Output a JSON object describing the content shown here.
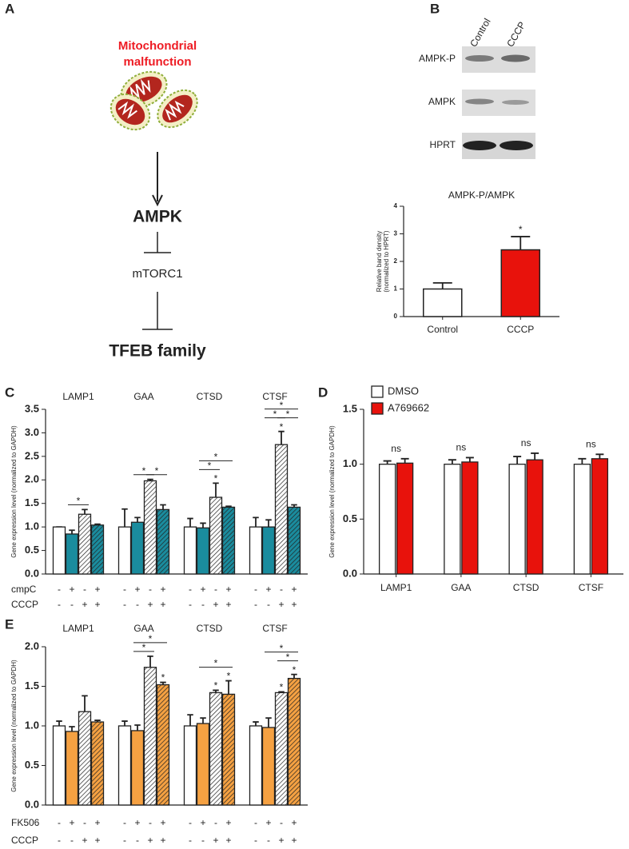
{
  "panel_labels": [
    "A",
    "B",
    "C",
    "D",
    "E"
  ],
  "diagram": {
    "title": [
      "Mitochondrial",
      "malfunction"
    ],
    "nodes": [
      "AMPK",
      "mTORC1",
      "TFEB family"
    ]
  },
  "blot": {
    "lanes": [
      "Control",
      "CCCP"
    ],
    "rows": [
      "AMPK-P",
      "AMPK",
      "HPRT"
    ]
  },
  "chart_data": [
    {
      "type": "bar",
      "title": "AMPK-P/AMPK",
      "y_label": [
        "Relative band density",
        "(normalized to HPRT)"
      ],
      "categories": [
        "Control",
        "CCCP"
      ],
      "values": [
        1.0,
        2.42
      ],
      "errors": [
        0.22,
        0.48
      ],
      "colors": [
        "#ffffff",
        "#e8120c"
      ],
      "ylim": [
        0,
        4
      ],
      "yticks": [
        0,
        1,
        2,
        3,
        4
      ],
      "significance": [
        {
          "group": 1,
          "bars": [
            0
          ],
          "label": "*"
        }
      ]
    },
    {
      "type": "grouped_bar",
      "y_label": "Gene expression level (normalized to GAPDH)",
      "categories": [
        "LAMP1",
        "GAA",
        "CTSD",
        "CTSF"
      ],
      "series": [
        {
          "color": "#ffffff",
          "hatch": false,
          "values": [
            1.0,
            1.0,
            1.0,
            1.0
          ],
          "errors": [
            0.0,
            0.38,
            0.18,
            0.2
          ]
        },
        {
          "color": "#1a8c9e",
          "hatch": false,
          "values": [
            0.85,
            1.1,
            0.98,
            1.0
          ],
          "errors": [
            0.08,
            0.1,
            0.1,
            0.15
          ]
        },
        {
          "color": "#ffffff",
          "hatch": true,
          "values": [
            1.27,
            1.98,
            1.63,
            2.75
          ],
          "errors": [
            0.1,
            0.03,
            0.3,
            0.28
          ]
        },
        {
          "color": "#1a8c9e",
          "hatch": true,
          "values": [
            1.04,
            1.37,
            1.42,
            1.42
          ],
          "errors": [
            0.02,
            0.1,
            0.02,
            0.05
          ]
        }
      ],
      "ylim": [
        0,
        3.5
      ],
      "yticks": [
        {
          "value": 0,
          "label": "0.0"
        },
        0.5,
        {
          "value": 1,
          "label": "1.0"
        },
        1.5,
        {
          "value": 2,
          "label": "2.0"
        },
        2.5,
        {
          "value": 3,
          "label": "3.0"
        },
        3.5
      ],
      "conditions": [
        {
          "label": "cmpC",
          "signs": [
            "-",
            "+",
            "-",
            "+"
          ]
        },
        {
          "label": "CCCP",
          "signs": [
            "-",
            "-",
            "+",
            "+"
          ]
        }
      ],
      "significance": [
        {
          "group": 0,
          "bars": [
            1,
            2
          ],
          "label": "*"
        },
        {
          "group": 1,
          "bars": [
            1,
            2
          ],
          "label": "*"
        },
        {
          "group": 1,
          "bars": [
            2,
            3
          ],
          "label": "*"
        },
        {
          "group": 2,
          "bars": [
            2
          ],
          "label": "*"
        },
        {
          "group": 2,
          "bars": [
            1,
            2
          ],
          "label": "*"
        },
        {
          "group": 2,
          "bars": [
            1,
            3
          ],
          "label": "*"
        },
        {
          "group": 3,
          "bars": [
            2
          ],
          "label": "*"
        },
        {
          "group": 3,
          "bars": [
            1,
            2
          ],
          "label": "*"
        },
        {
          "group": 3,
          "bars": [
            2,
            3
          ],
          "label": "*"
        },
        {
          "group": 3,
          "bars": [
            1,
            3
          ],
          "label": "*"
        }
      ]
    },
    {
      "type": "grouped_bar",
      "y_label": "Gene expression level (normalized to GAPDH)",
      "categories": [
        "LAMP1",
        "GAA",
        "CTSD",
        "CTSF"
      ],
      "series": [
        {
          "name": "DMSO",
          "color": "#ffffff",
          "hatch": false,
          "values": [
            1.0,
            1.0,
            1.0,
            1.0
          ],
          "errors": [
            0.03,
            0.04,
            0.07,
            0.05
          ]
        },
        {
          "name": "A769662",
          "color": "#e8120c",
          "hatch": false,
          "values": [
            1.01,
            1.02,
            1.04,
            1.05
          ],
          "errors": [
            0.04,
            0.04,
            0.06,
            0.04
          ]
        }
      ],
      "ylim": [
        0,
        1.5
      ],
      "yticks": [
        {
          "value": 0,
          "label": "0.0"
        },
        0.5,
        {
          "value": 1,
          "label": "1.0"
        },
        1.5
      ],
      "legend": "top-left",
      "significance": [
        {
          "group": 0,
          "bars": [
            0,
            1
          ],
          "label": "ns",
          "line": false
        },
        {
          "group": 1,
          "bars": [
            0,
            1
          ],
          "label": "ns",
          "line": false
        },
        {
          "group": 2,
          "bars": [
            0,
            1
          ],
          "label": "ns",
          "line": false
        },
        {
          "group": 3,
          "bars": [
            0,
            1
          ],
          "label": "ns",
          "line": false
        }
      ]
    },
    {
      "type": "grouped_bar",
      "y_label": "Gene expression level (normalized to GAPDH)",
      "categories": [
        "LAMP1",
        "GAA",
        "CTSD",
        "CTSF"
      ],
      "series": [
        {
          "color": "#ffffff",
          "hatch": false,
          "values": [
            1.0,
            1.0,
            1.0,
            1.0
          ],
          "errors": [
            0.06,
            0.06,
            0.14,
            0.05
          ]
        },
        {
          "color": "#f5a142",
          "hatch": false,
          "values": [
            0.93,
            0.94,
            1.03,
            0.98
          ],
          "errors": [
            0.06,
            0.07,
            0.07,
            0.12
          ]
        },
        {
          "color": "#ffffff",
          "hatch": true,
          "values": [
            1.18,
            1.74,
            1.42,
            1.42
          ],
          "errors": [
            0.2,
            0.14,
            0.03,
            0.01
          ]
        },
        {
          "color": "#f5a142",
          "hatch": true,
          "values": [
            1.05,
            1.52,
            1.4,
            1.6
          ],
          "errors": [
            0.02,
            0.03,
            0.17,
            0.05
          ]
        }
      ],
      "ylim": [
        0,
        2.0
      ],
      "yticks": [
        {
          "value": 0,
          "label": "0.0"
        },
        0.5,
        {
          "value": 1,
          "label": "1.0"
        },
        1.5,
        {
          "value": 2,
          "label": "2.0"
        }
      ],
      "conditions": [
        {
          "label": "FK506",
          "signs": [
            "-",
            "+",
            "-",
            "+"
          ]
        },
        {
          "label": "CCCP",
          "signs": [
            "-",
            "-",
            "+",
            "+"
          ]
        }
      ],
      "significance": [
        {
          "group": 1,
          "bars": [
            3
          ],
          "label": "*"
        },
        {
          "group": 1,
          "bars": [
            1,
            2
          ],
          "label": "*"
        },
        {
          "group": 1,
          "bars": [
            1,
            3
          ],
          "label": "*"
        },
        {
          "group": 2,
          "bars": [
            2
          ],
          "label": "*"
        },
        {
          "group": 2,
          "bars": [
            3
          ],
          "label": "*"
        },
        {
          "group": 2,
          "bars": [
            1,
            3
          ],
          "label": "*"
        },
        {
          "group": 3,
          "bars": [
            2
          ],
          "label": "*"
        },
        {
          "group": 3,
          "bars": [
            3
          ],
          "label": "*"
        },
        {
          "group": 3,
          "bars": [
            2,
            3
          ],
          "label": "*"
        },
        {
          "group": 3,
          "bars": [
            1,
            3
          ],
          "label": "*"
        }
      ]
    }
  ]
}
